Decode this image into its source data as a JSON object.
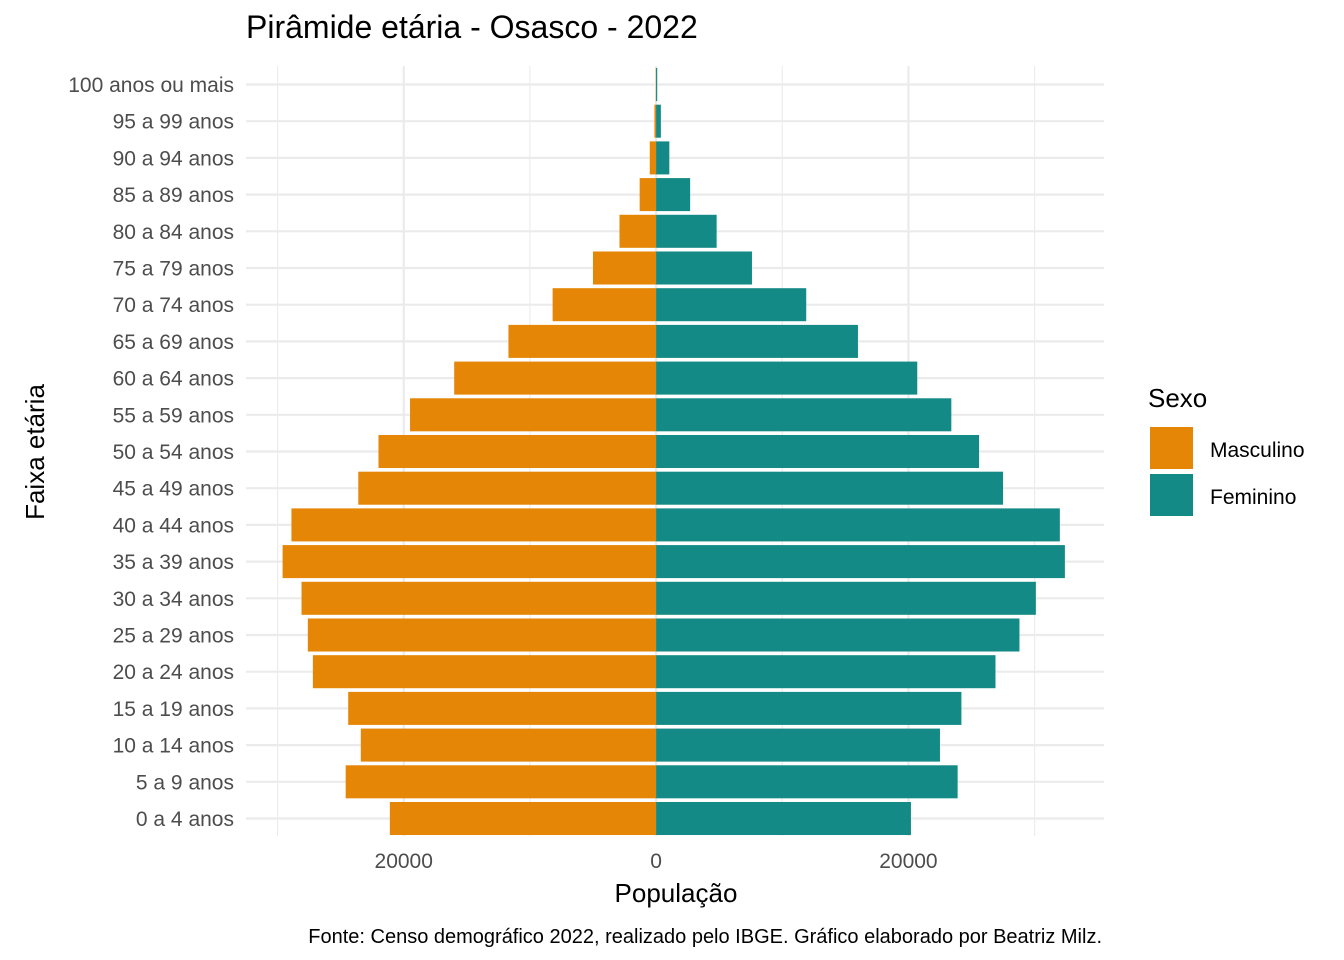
{
  "chart_data": {
    "type": "bar",
    "orientation": "horizontal",
    "title": "Pirâmide etária - Osasco - 2022",
    "xlabel": "População",
    "ylabel": "Faixa etária",
    "caption": "Fonte: Censo demográfico 2022, realizado pelo IBGE. Gráfico elaborado por Beatriz Milz.",
    "categories": [
      "0 a 4 anos",
      "5 a 9 anos",
      "10 a 14 anos",
      "15 a 19 anos",
      "20 a 24 anos",
      "25 a 29 anos",
      "30 a 34 anos",
      "35 a 39 anos",
      "40 a 44 anos",
      "45 a 49 anos",
      "50 a 54 anos",
      "55 a 59 anos",
      "60 a 64 anos",
      "65 a 69 anos",
      "70 a 74 anos",
      "75 a 79 anos",
      "80 a 84 anos",
      "85 a 89 anos",
      "90 a 94 anos",
      "95 a 99 anos",
      "100 anos ou mais"
    ],
    "series": [
      {
        "name": "Masculino",
        "color": "#E58606",
        "values": [
          -21100,
          -24600,
          -23400,
          -24400,
          -27200,
          -27600,
          -28100,
          -29600,
          -28900,
          -23600,
          -22000,
          -19500,
          -16000,
          -11700,
          -8200,
          -5000,
          -2900,
          -1300,
          -500,
          -130,
          -20
        ]
      },
      {
        "name": "Feminino",
        "color": "#148A87",
        "values": [
          20200,
          23900,
          22500,
          24200,
          26900,
          28800,
          30100,
          32400,
          32000,
          27500,
          25600,
          23400,
          20700,
          16000,
          11900,
          7600,
          4800,
          2700,
          1050,
          380,
          90
        ]
      }
    ],
    "xlim": [
      -32500,
      35500
    ],
    "x_ticks": [
      -20000,
      0,
      20000
    ],
    "x_tick_labels": [
      "20000",
      "0",
      "20000"
    ],
    "legend": {
      "title": "Sexo",
      "position": "right",
      "items": [
        "Masculino",
        "Feminino"
      ]
    },
    "grid": true
  }
}
